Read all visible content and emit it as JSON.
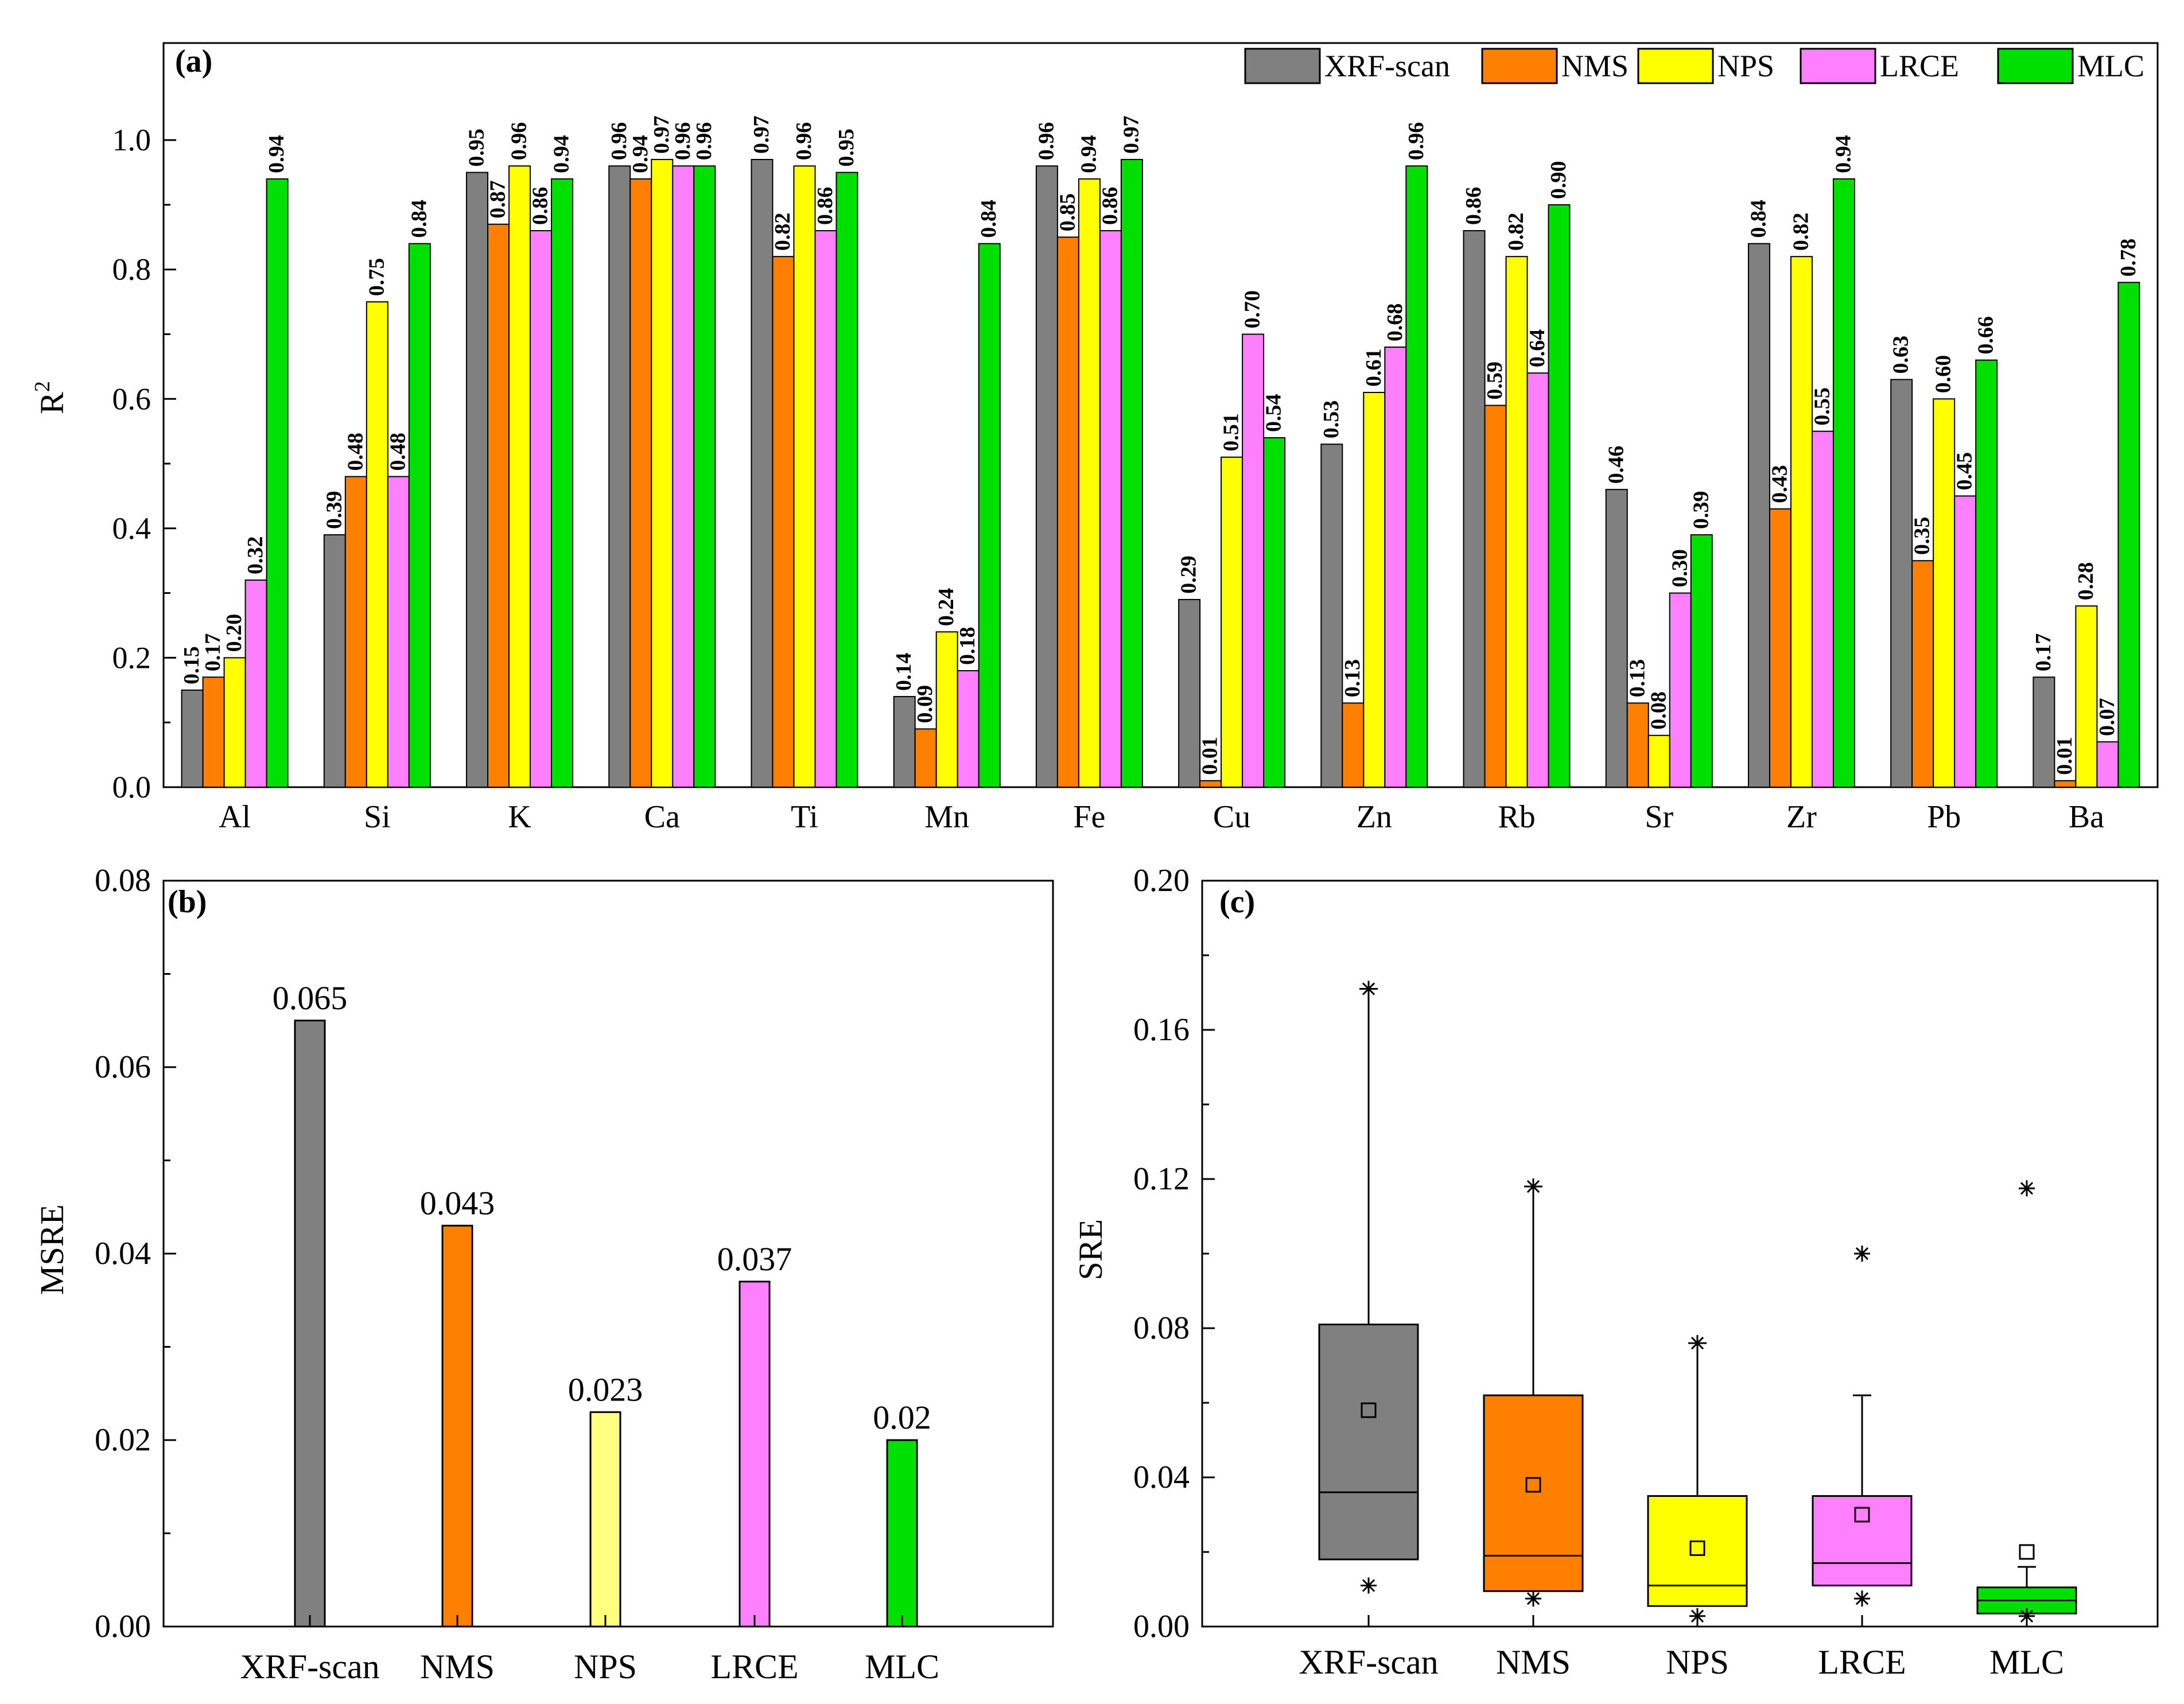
{
  "colors": {
    "XRF-scan": "#808080",
    "NMS": "#ff7f00",
    "NPS": "#ffff00",
    "LRCE": "#ff80ff",
    "MLC": "#00e000",
    "NPS_b": "#ffff80"
  },
  "chart_data": [
    {
      "panel": "(a)",
      "type": "bar",
      "ylabel": "R",
      "ylabel_sup": "2",
      "ylim": [
        0,
        1.15
      ],
      "yticks": [
        "0.0",
        "0.2",
        "0.4",
        "0.6",
        "0.8",
        "1.0"
      ],
      "categories": [
        "Al",
        "Si",
        "K",
        "Ca",
        "Ti",
        "Mn",
        "Fe",
        "Cu",
        "Zn",
        "Rb",
        "Sr",
        "Zr",
        "Pb",
        "Ba"
      ],
      "legend_position": "top-right",
      "series": [
        {
          "name": "XRF-scan",
          "values": [
            0.15,
            0.39,
            0.95,
            0.96,
            0.97,
            0.14,
            0.96,
            0.29,
            0.53,
            0.86,
            0.46,
            0.84,
            0.63,
            0.17
          ],
          "labels": [
            "0.15",
            "0.39",
            "0.95",
            "0.96",
            "0.97",
            "0.14",
            "0.96",
            "0.29",
            "0.53",
            "0.86",
            "0.46",
            "0.84",
            "0.63",
            "0.17"
          ]
        },
        {
          "name": "NMS",
          "values": [
            0.17,
            0.48,
            0.87,
            0.94,
            0.82,
            0.09,
            0.85,
            0.01,
            0.13,
            0.59,
            0.13,
            0.43,
            0.35,
            0.01
          ],
          "labels": [
            "0.17",
            "0.48",
            "0.87",
            "0.94",
            "0.82",
            "0.09",
            "0.85",
            "0.01",
            "0.13",
            "0.59",
            "0.13",
            "0.43",
            "0.35",
            "0.01"
          ]
        },
        {
          "name": "NPS",
          "values": [
            0.2,
            0.75,
            0.96,
            0.97,
            0.96,
            0.24,
            0.94,
            0.51,
            0.61,
            0.82,
            0.08,
            0.82,
            0.6,
            0.28
          ],
          "labels": [
            "0.20",
            "0.75",
            "0.96",
            "0.97",
            "0.96",
            "0.24",
            "0.94",
            "0.51",
            "0.61",
            "0.82",
            "0.08",
            "0.82",
            "0.60",
            "0.28"
          ]
        },
        {
          "name": "LRCE",
          "values": [
            0.32,
            0.48,
            0.86,
            0.96,
            0.86,
            0.18,
            0.86,
            0.7,
            0.68,
            0.64,
            0.3,
            0.55,
            0.45,
            0.07
          ],
          "labels": [
            "0.32",
            "0.48",
            "0.86",
            "0.96",
            "0.86",
            "0.18",
            "0.86",
            "0.70",
            "0.68",
            "0.64",
            "0.30",
            "0.55",
            "0.45",
            "0.07"
          ]
        },
        {
          "name": "MLC",
          "values": [
            0.94,
            0.84,
            0.94,
            0.96,
            0.95,
            0.84,
            0.97,
            0.54,
            0.96,
            0.9,
            0.39,
            0.94,
            0.66,
            0.78
          ],
          "labels": [
            "0.94",
            "0.84",
            "0.94",
            "0.96",
            "0.95",
            "0.84",
            "0.97",
            "0.54",
            "0.96",
            "0.90",
            "0.39",
            "0.94",
            "0.66",
            "0.78"
          ]
        }
      ]
    },
    {
      "panel": "(b)",
      "type": "bar",
      "ylabel": "MSRE",
      "ylim": [
        0,
        0.08
      ],
      "yticks": [
        "0.00",
        "0.02",
        "0.04",
        "0.06",
        "0.08"
      ],
      "categories": [
        "XRF-scan",
        "NMS",
        "NPS",
        "LRCE",
        "MLC"
      ],
      "values": [
        0.065,
        0.043,
        0.023,
        0.037,
        0.02
      ],
      "labels": [
        "0.065",
        "0.043",
        "0.023",
        "0.037",
        "0.02"
      ]
    },
    {
      "panel": "(c)",
      "type": "box",
      "ylabel": "SRE",
      "ylim": [
        0,
        0.2
      ],
      "yticks": [
        "0.00",
        "0.04",
        "0.08",
        "0.12",
        "0.16",
        "0.20"
      ],
      "categories": [
        "XRF-scan",
        "NMS",
        "NPS",
        "LRCE",
        "MLC"
      ],
      "boxes": [
        {
          "q1": 0.018,
          "median": 0.036,
          "q3": 0.081,
          "mean": 0.058,
          "whisker_low": 0.018,
          "whisker_high": 0.171,
          "min": 0.011,
          "max": 0.171
        },
        {
          "q1": 0.0095,
          "median": 0.019,
          "q3": 0.062,
          "mean": 0.038,
          "whisker_low": 0.0095,
          "whisker_high": 0.118,
          "min": 0.0075,
          "max": 0.118
        },
        {
          "q1": 0.0055,
          "median": 0.011,
          "q3": 0.035,
          "mean": 0.021,
          "whisker_low": 0.0055,
          "whisker_high": 0.076,
          "min": 0.0028,
          "max": 0.076
        },
        {
          "q1": 0.011,
          "median": 0.017,
          "q3": 0.035,
          "mean": 0.03,
          "whisker_low": 0.011,
          "whisker_high": 0.062,
          "min": 0.0075,
          "max": 0.1
        },
        {
          "q1": 0.0035,
          "median": 0.007,
          "q3": 0.0105,
          "mean": 0.02,
          "whisker_low": 0.0035,
          "whisker_high": 0.016,
          "min": 0.0028,
          "max": 0.1175
        }
      ]
    }
  ]
}
